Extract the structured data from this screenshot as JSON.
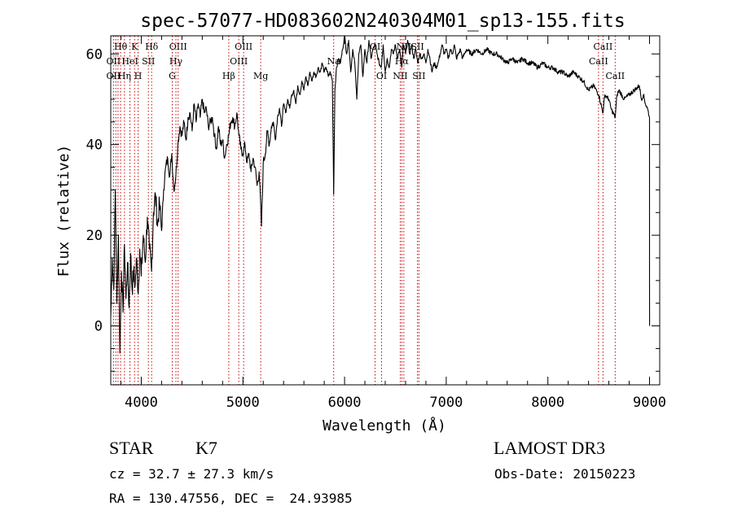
{
  "chart_data": {
    "type": "line",
    "title": "spec-57077-HD083602N240304M01_sp13-155.fits",
    "xlabel": "Wavelength (Å)",
    "ylabel": "Flux (relative)",
    "xlim": [
      3700,
      9100
    ],
    "ylim": [
      -13,
      64
    ],
    "xticks": [
      4000,
      5000,
      6000,
      7000,
      8000,
      9000
    ],
    "xtick_labels": [
      "4000",
      "5000",
      "6000",
      "7000",
      "8000",
      "9000"
    ],
    "yticks": [
      0,
      20,
      40,
      60
    ],
    "ytick_labels": [
      "0",
      "20",
      "40",
      "60"
    ],
    "series": [
      {
        "name": "flux",
        "points": [
          [
            3700,
            2
          ],
          [
            3715,
            15
          ],
          [
            3730,
            8
          ],
          [
            3745,
            30
          ],
          [
            3760,
            5
          ],
          [
            3775,
            20
          ],
          [
            3790,
            -6
          ],
          [
            3805,
            12
          ],
          [
            3820,
            3
          ],
          [
            3835,
            18
          ],
          [
            3850,
            6
          ],
          [
            3865,
            14
          ],
          [
            3880,
            4
          ],
          [
            3895,
            16
          ],
          [
            3910,
            8
          ],
          [
            3925,
            12
          ],
          [
            3940,
            9
          ],
          [
            3955,
            15
          ],
          [
            3970,
            7
          ],
          [
            3985,
            17
          ],
          [
            4000,
            11
          ],
          [
            4020,
            20
          ],
          [
            4040,
            14
          ],
          [
            4060,
            24
          ],
          [
            4080,
            17
          ],
          [
            4101,
            12
          ],
          [
            4120,
            25
          ],
          [
            4140,
            29
          ],
          [
            4160,
            22
          ],
          [
            4180,
            27
          ],
          [
            4200,
            21
          ],
          [
            4220,
            30
          ],
          [
            4240,
            35
          ],
          [
            4260,
            37
          ],
          [
            4280,
            33
          ],
          [
            4300,
            38
          ],
          [
            4320,
            30
          ],
          [
            4340,
            33
          ],
          [
            4360,
            40
          ],
          [
            4380,
            44
          ],
          [
            4400,
            42
          ],
          [
            4420,
            45
          ],
          [
            4440,
            41
          ],
          [
            4460,
            46
          ],
          [
            4480,
            47
          ],
          [
            4500,
            43
          ],
          [
            4520,
            49
          ],
          [
            4540,
            45
          ],
          [
            4560,
            49
          ],
          [
            4580,
            46
          ],
          [
            4600,
            50
          ],
          [
            4620,
            47
          ],
          [
            4640,
            48
          ],
          [
            4660,
            44
          ],
          [
            4680,
            45
          ],
          [
            4700,
            46
          ],
          [
            4720,
            42
          ],
          [
            4740,
            39
          ],
          [
            4760,
            44
          ],
          [
            4780,
            40
          ],
          [
            4800,
            41
          ],
          [
            4820,
            37
          ],
          [
            4840,
            40
          ],
          [
            4860,
            42
          ],
          [
            4880,
            45
          ],
          [
            4900,
            46
          ],
          [
            4920,
            44
          ],
          [
            4940,
            47
          ],
          [
            4960,
            42
          ],
          [
            4980,
            39
          ],
          [
            5000,
            38
          ],
          [
            5020,
            40
          ],
          [
            5040,
            36
          ],
          [
            5060,
            38
          ],
          [
            5080,
            34
          ],
          [
            5100,
            37
          ],
          [
            5120,
            35
          ],
          [
            5140,
            31
          ],
          [
            5160,
            34
          ],
          [
            5183,
            22
          ],
          [
            5200,
            36
          ],
          [
            5220,
            38
          ],
          [
            5240,
            43
          ],
          [
            5260,
            40
          ],
          [
            5280,
            44
          ],
          [
            5300,
            45
          ],
          [
            5320,
            41
          ],
          [
            5340,
            46
          ],
          [
            5360,
            48
          ],
          [
            5380,
            44
          ],
          [
            5400,
            49
          ],
          [
            5420,
            47
          ],
          [
            5440,
            50
          ],
          [
            5460,
            48
          ],
          [
            5480,
            51
          ],
          [
            5500,
            52
          ],
          [
            5520,
            49
          ],
          [
            5540,
            53
          ],
          [
            5560,
            51
          ],
          [
            5580,
            54
          ],
          [
            5600,
            52
          ],
          [
            5620,
            55
          ],
          [
            5640,
            53
          ],
          [
            5660,
            56
          ],
          [
            5680,
            54
          ],
          [
            5700,
            56
          ],
          [
            5720,
            55
          ],
          [
            5740,
            57
          ],
          [
            5760,
            56
          ],
          [
            5780,
            58
          ],
          [
            5800,
            56
          ],
          [
            5820,
            57
          ],
          [
            5840,
            55
          ],
          [
            5860,
            56
          ],
          [
            5880,
            54
          ],
          [
            5893,
            29
          ],
          [
            5905,
            52
          ],
          [
            5920,
            57
          ],
          [
            5940,
            59
          ],
          [
            5960,
            58
          ],
          [
            5980,
            61
          ],
          [
            6000,
            64
          ],
          [
            6020,
            60
          ],
          [
            6040,
            63
          ],
          [
            6060,
            56
          ],
          [
            6080,
            61
          ],
          [
            6100,
            58
          ],
          [
            6120,
            50
          ],
          [
            6140,
            60
          ],
          [
            6160,
            62
          ],
          [
            6180,
            55
          ],
          [
            6200,
            61
          ],
          [
            6220,
            58
          ],
          [
            6240,
            63
          ],
          [
            6260,
            59
          ],
          [
            6280,
            61
          ],
          [
            6300,
            62
          ],
          [
            6320,
            60
          ],
          [
            6340,
            58
          ],
          [
            6360,
            57
          ],
          [
            6380,
            62
          ],
          [
            6400,
            56
          ],
          [
            6420,
            59
          ],
          [
            6440,
            57
          ],
          [
            6460,
            61
          ],
          [
            6480,
            60
          ],
          [
            6500,
            62
          ],
          [
            6520,
            59
          ],
          [
            6540,
            61
          ],
          [
            6563,
            57
          ],
          [
            6580,
            62
          ],
          [
            6600,
            60
          ],
          [
            6620,
            63
          ],
          [
            6640,
            60
          ],
          [
            6660,
            62
          ],
          [
            6680,
            59
          ],
          [
            6700,
            61
          ],
          [
            6720,
            58
          ],
          [
            6740,
            60
          ],
          [
            6760,
            59
          ],
          [
            6780,
            60
          ],
          [
            6800,
            58
          ],
          [
            6820,
            61
          ],
          [
            6840,
            59
          ],
          [
            6860,
            56
          ],
          [
            6880,
            58
          ],
          [
            6900,
            57
          ],
          [
            6920,
            58
          ],
          [
            6940,
            60
          ],
          [
            6960,
            62
          ],
          [
            6980,
            60
          ],
          [
            7000,
            61
          ],
          [
            7020,
            59
          ],
          [
            7040,
            61
          ],
          [
            7060,
            60
          ],
          [
            7080,
            62
          ],
          [
            7100,
            59
          ],
          [
            7120,
            60
          ],
          [
            7140,
            61
          ],
          [
            7160,
            59
          ],
          [
            7180,
            60
          ],
          [
            7200,
            61
          ],
          [
            7250,
            60
          ],
          [
            7300,
            61
          ],
          [
            7350,
            60
          ],
          [
            7400,
            61
          ],
          [
            7450,
            60
          ],
          [
            7500,
            60
          ],
          [
            7550,
            59
          ],
          [
            7600,
            58
          ],
          [
            7650,
            59
          ],
          [
            7700,
            58
          ],
          [
            7750,
            59
          ],
          [
            7800,
            58
          ],
          [
            7850,
            58
          ],
          [
            7900,
            57
          ],
          [
            7950,
            58
          ],
          [
            8000,
            57
          ],
          [
            8050,
            57
          ],
          [
            8100,
            56
          ],
          [
            8150,
            56
          ],
          [
            8200,
            55
          ],
          [
            8250,
            56
          ],
          [
            8300,
            55
          ],
          [
            8350,
            54
          ],
          [
            8400,
            52
          ],
          [
            8450,
            53
          ],
          [
            8500,
            51
          ],
          [
            8542,
            47
          ],
          [
            8560,
            51
          ],
          [
            8600,
            50
          ],
          [
            8620,
            48
          ],
          [
            8662,
            46
          ],
          [
            8680,
            51
          ],
          [
            8700,
            52
          ],
          [
            8750,
            50
          ],
          [
            8800,
            51
          ],
          [
            8850,
            52
          ],
          [
            8900,
            53
          ],
          [
            8920,
            50
          ],
          [
            8940,
            51
          ],
          [
            8960,
            49
          ],
          [
            8980,
            48
          ],
          [
            9000,
            46
          ],
          [
            9000,
            10
          ],
          [
            9001,
            0
          ]
        ]
      }
    ],
    "line_labels": [
      {
        "name": "OII",
        "wavelength": 3727,
        "row": 2,
        "text": "OII"
      },
      {
        "name": "Hθ",
        "wavelength": 3797,
        "row": 0,
        "text": "Hθ"
      },
      {
        "name": "OII",
        "wavelength": 3727,
        "row": 1,
        "text": "OII"
      },
      {
        "name": "Hη",
        "wavelength": 3835,
        "row": 2,
        "text": "Hη"
      },
      {
        "name": "HeI",
        "wavelength": 3889,
        "row": 1,
        "text": "HeI"
      },
      {
        "name": "K",
        "wavelength": 3934,
        "row": 0,
        "text": "K"
      },
      {
        "name": "H",
        "wavelength": 3969,
        "row": 2,
        "text": "H"
      },
      {
        "name": "SII",
        "wavelength": 4070,
        "row": 1,
        "text": "SII"
      },
      {
        "name": "Hδ",
        "wavelength": 4102,
        "row": 0,
        "text": "Hδ"
      },
      {
        "name": "G",
        "wavelength": 4305,
        "row": 2,
        "text": "G"
      },
      {
        "name": "Hγ",
        "wavelength": 4341,
        "row": 1,
        "text": "Hγ"
      },
      {
        "name": "OIII",
        "wavelength": 4363,
        "row": 0,
        "text": "OIII"
      },
      {
        "name": "Hβ",
        "wavelength": 4861,
        "row": 2,
        "text": "Hβ"
      },
      {
        "name": "OIII",
        "wavelength": 4959,
        "row": 1,
        "text": "OIII"
      },
      {
        "name": "OIII",
        "wavelength": 5007,
        "row": 0,
        "text": "OIII"
      },
      {
        "name": "Mg",
        "wavelength": 5175,
        "row": 2,
        "text": "Mg"
      },
      {
        "name": "Na",
        "wavelength": 5893,
        "row": 1,
        "text": "Na"
      },
      {
        "name": "OI",
        "wavelength": 6300,
        "row": 0,
        "text": "OI"
      },
      {
        "name": "OI",
        "wavelength": 6364,
        "row": 2,
        "text": "OI"
      },
      {
        "name": "NII",
        "wavelength": 6548,
        "row": 2,
        "text": "NII"
      },
      {
        "name": "Hα",
        "wavelength": 6563,
        "row": 1,
        "text": "Hα"
      },
      {
        "name": "NII",
        "wavelength": 6583,
        "row": 0,
        "text": "NII"
      },
      {
        "name": "SII",
        "wavelength": 6717,
        "row": 0,
        "text": "SII"
      },
      {
        "name": "SII",
        "wavelength": 6731,
        "row": 2,
        "text": "SII"
      },
      {
        "name": "CaII",
        "wavelength": 8498,
        "row": 1,
        "text": "CaII"
      },
      {
        "name": "CaII",
        "wavelength": 8542,
        "row": 0,
        "text": "CaII"
      },
      {
        "name": "CaII",
        "wavelength": 8662,
        "row": 2,
        "text": "CaII"
      }
    ],
    "line_marker_wavelengths": [
      3727,
      3750,
      3771,
      3797,
      3835,
      3889,
      3934,
      3969,
      4070,
      4102,
      4305,
      4341,
      4363,
      4861,
      4959,
      5007,
      5175,
      5893,
      6300,
      6364,
      6548,
      6563,
      6583,
      6717,
      6731,
      8498,
      8542,
      8662
    ]
  },
  "colors": {
    "spectrum_line": "#000000",
    "line_marker": "#cc0000",
    "axes": "#000000",
    "background": "#ffffff"
  },
  "info": {
    "object_type": "STAR",
    "subclass": "K7",
    "survey": "LAMOST DR3",
    "cz": "cz = 32.7 ± 27.3 km/s",
    "obs_date": "Obs-Date: 20150223",
    "coords": "RA = 130.47556, DEC =  24.93985"
  }
}
